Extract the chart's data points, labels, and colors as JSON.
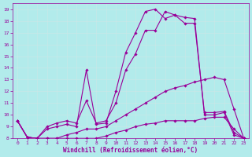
{
  "xlabel": "Windchill (Refroidissement éolien,°C)",
  "background_color": "#b2ebeb",
  "line_color": "#990099",
  "grid_color": "#d0f0f0",
  "xlim": [
    -0.5,
    23.5
  ],
  "ylim": [
    8,
    19.5
  ],
  "yticks": [
    8,
    9,
    10,
    11,
    12,
    13,
    14,
    15,
    16,
    17,
    18,
    19
  ],
  "xticks": [
    0,
    1,
    2,
    3,
    4,
    5,
    6,
    7,
    8,
    9,
    10,
    11,
    12,
    13,
    14,
    15,
    16,
    17,
    18,
    19,
    20,
    21,
    22,
    23
  ],
  "series": [
    {
      "x": [
        0,
        1,
        2,
        3,
        4,
        5,
        6,
        7,
        8,
        9,
        10,
        11,
        12,
        13,
        14,
        15,
        16,
        17,
        18,
        19,
        20,
        21,
        22,
        23
      ],
      "y": [
        9.5,
        8.1,
        8.0,
        9.0,
        9.3,
        9.5,
        9.3,
        11.2,
        9.3,
        9.5,
        11.0,
        13.8,
        15.2,
        17.2,
        17.2,
        18.8,
        18.5,
        17.8,
        17.8,
        10.2,
        10.2,
        10.3,
        8.5,
        8.0
      ]
    },
    {
      "x": [
        0,
        1,
        2,
        3,
        4,
        5,
        6,
        7,
        8,
        9,
        10,
        11,
        12,
        13,
        14,
        15,
        16,
        17,
        18,
        19,
        20,
        21,
        22,
        23
      ],
      "y": [
        9.5,
        8.1,
        8.0,
        8.8,
        9.0,
        9.2,
        9.0,
        13.8,
        9.2,
        9.3,
        12.0,
        15.3,
        17.0,
        18.8,
        19.0,
        18.2,
        18.5,
        18.3,
        18.2,
        10.0,
        10.0,
        10.2,
        8.3,
        8.0
      ]
    },
    {
      "x": [
        0,
        1,
        2,
        3,
        4,
        5,
        6,
        7,
        8,
        9,
        10,
        11,
        12,
        13,
        14,
        15,
        16,
        17,
        18,
        19,
        20,
        21,
        22,
        23
      ],
      "y": [
        9.5,
        8.1,
        8.0,
        8.0,
        8.0,
        8.3,
        8.5,
        8.8,
        8.8,
        9.0,
        9.5,
        10.0,
        10.5,
        11.0,
        11.5,
        12.0,
        12.3,
        12.5,
        12.8,
        13.0,
        13.2,
        13.0,
        10.5,
        8.0
      ]
    },
    {
      "x": [
        0,
        1,
        2,
        3,
        4,
        5,
        6,
        7,
        8,
        9,
        10,
        11,
        12,
        13,
        14,
        15,
        16,
        17,
        18,
        19,
        20,
        21,
        22,
        23
      ],
      "y": [
        9.5,
        8.1,
        8.0,
        8.0,
        8.0,
        8.0,
        8.0,
        8.0,
        8.0,
        8.2,
        8.5,
        8.7,
        9.0,
        9.2,
        9.3,
        9.5,
        9.5,
        9.5,
        9.5,
        9.7,
        9.8,
        9.8,
        8.8,
        8.0
      ]
    }
  ]
}
